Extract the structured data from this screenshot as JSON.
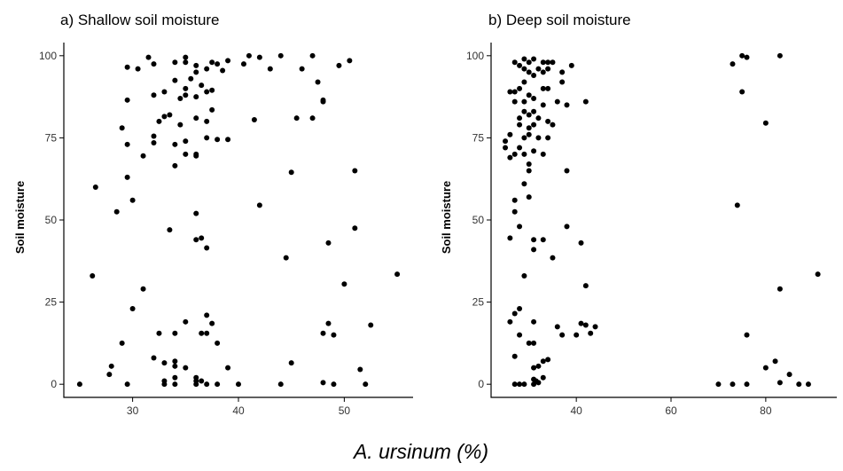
{
  "figure": {
    "xlabel": "A. ursinum (%)"
  },
  "chart_data": [
    {
      "type": "scatter",
      "title": "a) Shallow soil moisture",
      "xlabel": "",
      "ylabel": "Soil moisture",
      "xlim": [
        23.5,
        56.5
      ],
      "ylim": [
        -4,
        104
      ],
      "xticks": [
        30,
        40,
        50
      ],
      "yticks": [
        0,
        25,
        50,
        75,
        100
      ],
      "grid": false,
      "points": [
        [
          25,
          0
        ],
        [
          29.5,
          0
        ],
        [
          33,
          0
        ],
        [
          34,
          0
        ],
        [
          36,
          0
        ],
        [
          37,
          0
        ],
        [
          38,
          0
        ],
        [
          40,
          0
        ],
        [
          44,
          0
        ],
        [
          48,
          0.5
        ],
        [
          49,
          0
        ],
        [
          52,
          0
        ],
        [
          33,
          1
        ],
        [
          34,
          2
        ],
        [
          36,
          1
        ],
        [
          36.5,
          1
        ],
        [
          36,
          2
        ],
        [
          34,
          5.5
        ],
        [
          34,
          7
        ],
        [
          32,
          8
        ],
        [
          33,
          6.5
        ],
        [
          35,
          5
        ],
        [
          39,
          5
        ],
        [
          45,
          6.5
        ],
        [
          51.5,
          4.5
        ],
        [
          28,
          5.5
        ],
        [
          27.8,
          3
        ],
        [
          29,
          12.5
        ],
        [
          32.5,
          15.5
        ],
        [
          34,
          15.5
        ],
        [
          35,
          19
        ],
        [
          36.5,
          15.5
        ],
        [
          37,
          21
        ],
        [
          37.5,
          18.5
        ],
        [
          38,
          12.5
        ],
        [
          37,
          15.5
        ],
        [
          48,
          15.5
        ],
        [
          48.5,
          18.5
        ],
        [
          49,
          15
        ],
        [
          52.5,
          18
        ],
        [
          30,
          23
        ],
        [
          31,
          29
        ],
        [
          50,
          30.5
        ],
        [
          55,
          33.5
        ],
        [
          26.2,
          33
        ],
        [
          44.5,
          38.5
        ],
        [
          37,
          41.5
        ],
        [
          36.5,
          44.5
        ],
        [
          36,
          44
        ],
        [
          33.5,
          47
        ],
        [
          48.5,
          43
        ],
        [
          51,
          47.5
        ],
        [
          36,
          52
        ],
        [
          28.5,
          52.5
        ],
        [
          30,
          56
        ],
        [
          42,
          54.5
        ],
        [
          26.5,
          60
        ],
        [
          29.5,
          63
        ],
        [
          45,
          64.5
        ],
        [
          51,
          65
        ],
        [
          34,
          66.5
        ],
        [
          29.5,
          73
        ],
        [
          31,
          69.5
        ],
        [
          32,
          75.5
        ],
        [
          32,
          73.5
        ],
        [
          34,
          73
        ],
        [
          35,
          74
        ],
        [
          35,
          70
        ],
        [
          36,
          70
        ],
        [
          36,
          69.5
        ],
        [
          37,
          75
        ],
        [
          38,
          74.5
        ],
        [
          39,
          74.5
        ],
        [
          32.5,
          80
        ],
        [
          33,
          81.5
        ],
        [
          33.5,
          82
        ],
        [
          34.5,
          79
        ],
        [
          36,
          81
        ],
        [
          37,
          80
        ],
        [
          37.5,
          83.5
        ],
        [
          41.5,
          80.5
        ],
        [
          45.5,
          81
        ],
        [
          47,
          81
        ],
        [
          48,
          86
        ],
        [
          29,
          78
        ],
        [
          32,
          88
        ],
        [
          33,
          89
        ],
        [
          34.5,
          87
        ],
        [
          35,
          88
        ],
        [
          36,
          87.5
        ],
        [
          36.5,
          91
        ],
        [
          37,
          89
        ],
        [
          37.5,
          89.5
        ],
        [
          29.5,
          86.5
        ],
        [
          34,
          92.5
        ],
        [
          35,
          90
        ],
        [
          35.5,
          93
        ],
        [
          36,
          95
        ],
        [
          37,
          96
        ],
        [
          38.5,
          95.5
        ],
        [
          39,
          98.5
        ],
        [
          40.5,
          97.5
        ],
        [
          41,
          100
        ],
        [
          42,
          99.5
        ],
        [
          43,
          96
        ],
        [
          44,
          100
        ],
        [
          46,
          96
        ],
        [
          47,
          100
        ],
        [
          47.5,
          92
        ],
        [
          48,
          86.5
        ],
        [
          49.5,
          97
        ],
        [
          50.5,
          98.5
        ],
        [
          29.5,
          96.5
        ],
        [
          30.5,
          96
        ],
        [
          31.5,
          99.5
        ],
        [
          32,
          97.5
        ],
        [
          34,
          98
        ],
        [
          35,
          99.5
        ],
        [
          35,
          98
        ],
        [
          36,
          97
        ],
        [
          37.5,
          98
        ],
        [
          38,
          97.5
        ]
      ]
    },
    {
      "type": "scatter",
      "title": "b) Deep soil moisture",
      "xlabel": "",
      "ylabel": "Soil moisture",
      "xlim": [
        22,
        95
      ],
      "ylim": [
        -4,
        104
      ],
      "xticks": [
        40,
        60,
        80
      ],
      "yticks": [
        0,
        25,
        50,
        75,
        100
      ],
      "grid": false,
      "points": [
        [
          27,
          0
        ],
        [
          28,
          0
        ],
        [
          29,
          0
        ],
        [
          31,
          0
        ],
        [
          32,
          0.5
        ],
        [
          31.5,
          1
        ],
        [
          33,
          2
        ],
        [
          31,
          1.5
        ],
        [
          31,
          5
        ],
        [
          32,
          5.5
        ],
        [
          33,
          7
        ],
        [
          34,
          7.5
        ],
        [
          27,
          8.5
        ],
        [
          28,
          15
        ],
        [
          30,
          12.5
        ],
        [
          31,
          12.5
        ],
        [
          26,
          19
        ],
        [
          27,
          21.5
        ],
        [
          28,
          23
        ],
        [
          31,
          19
        ],
        [
          36,
          17.5
        ],
        [
          37,
          15
        ],
        [
          40,
          15
        ],
        [
          41,
          18.5
        ],
        [
          42,
          18
        ],
        [
          43,
          15.5
        ],
        [
          44,
          17.5
        ],
        [
          42,
          30
        ],
        [
          29,
          33
        ],
        [
          35,
          38.5
        ],
        [
          31,
          41
        ],
        [
          31,
          44
        ],
        [
          33,
          44
        ],
        [
          41,
          43
        ],
        [
          26,
          44.5
        ],
        [
          28,
          48
        ],
        [
          27,
          52.5
        ],
        [
          27,
          56
        ],
        [
          30,
          57
        ],
        [
          38,
          48
        ],
        [
          29,
          61
        ],
        [
          30,
          65
        ],
        [
          30,
          67
        ],
        [
          25,
          72
        ],
        [
          25,
          74
        ],
        [
          26,
          69
        ],
        [
          27,
          70
        ],
        [
          29,
          70
        ],
        [
          31,
          71
        ],
        [
          33,
          70
        ],
        [
          28,
          72
        ],
        [
          29,
          75
        ],
        [
          30,
          76
        ],
        [
          32,
          75
        ],
        [
          34,
          75
        ],
        [
          26,
          76
        ],
        [
          28,
          79
        ],
        [
          30,
          78
        ],
        [
          31,
          79
        ],
        [
          34,
          80
        ],
        [
          35,
          79
        ],
        [
          28,
          81
        ],
        [
          29,
          83
        ],
        [
          30,
          82
        ],
        [
          31,
          83
        ],
        [
          32,
          81
        ],
        [
          33,
          85
        ],
        [
          27,
          86
        ],
        [
          29,
          86
        ],
        [
          30,
          88
        ],
        [
          31,
          87
        ],
        [
          33,
          90
        ],
        [
          34,
          90
        ],
        [
          36,
          86
        ],
        [
          38,
          85
        ],
        [
          42,
          86
        ],
        [
          38,
          65
        ],
        [
          26,
          89
        ],
        [
          27,
          89
        ],
        [
          28,
          90
        ],
        [
          29,
          92
        ],
        [
          31,
          94
        ],
        [
          33,
          95
        ],
        [
          34,
          96
        ],
        [
          37,
          92
        ],
        [
          27,
          98
        ],
        [
          28,
          97
        ],
        [
          29,
          96
        ],
        [
          30,
          98
        ],
        [
          31,
          99
        ],
        [
          32,
          96
        ],
        [
          33,
          98
        ],
        [
          34,
          98
        ],
        [
          35,
          98
        ],
        [
          37,
          95
        ],
        [
          39,
          97
        ],
        [
          29,
          99
        ],
        [
          30,
          95
        ],
        [
          73,
          97.5
        ],
        [
          75,
          100
        ],
        [
          76,
          99.5
        ],
        [
          83,
          100
        ],
        [
          75,
          89
        ],
        [
          80,
          79.5
        ],
        [
          74,
          54.5
        ],
        [
          83,
          29
        ],
        [
          91,
          33.5
        ],
        [
          76,
          15
        ],
        [
          80,
          5
        ],
        [
          82,
          7
        ],
        [
          85,
          3
        ],
        [
          89,
          0
        ],
        [
          83,
          0.5
        ],
        [
          70,
          0
        ],
        [
          73,
          0
        ],
        [
          76,
          0
        ],
        [
          87,
          0
        ]
      ]
    }
  ]
}
